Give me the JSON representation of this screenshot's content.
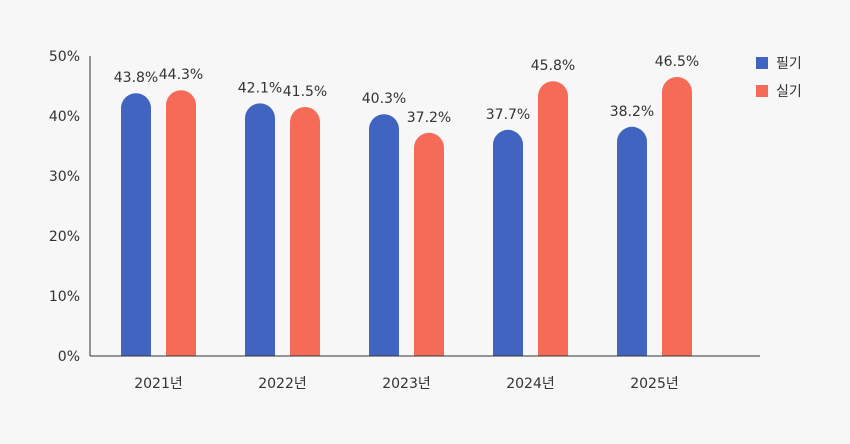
{
  "chart_data": {
    "type": "bar",
    "categories": [
      "2021년",
      "2022년",
      "2023년",
      "2024년",
      "2025년"
    ],
    "series": [
      {
        "name": "필기",
        "color": "#4164c0",
        "values": [
          43.8,
          42.1,
          40.3,
          37.7,
          38.2
        ]
      },
      {
        "name": "실기",
        "color": "#f66b58",
        "values": [
          44.3,
          41.5,
          37.2,
          45.8,
          46.5
        ]
      }
    ],
    "value_labels": {
      "필기": [
        "43.8%",
        "42.1%",
        "40.3%",
        "37.7%",
        "38.2%"
      ],
      "실기": [
        "44.3%",
        "41.5%",
        "37.2%",
        "45.8%",
        "46.5%"
      ]
    },
    "ylim": [
      0,
      50
    ],
    "yticks": [
      0,
      10,
      20,
      30,
      40,
      50
    ],
    "ytick_labels": [
      "0%",
      "10%",
      "20%",
      "30%",
      "40%",
      "50%"
    ],
    "title": "",
    "xlabel": "",
    "ylabel": "",
    "grid": false,
    "legend_position": "top-right",
    "bar_shape": "rounded-top"
  }
}
